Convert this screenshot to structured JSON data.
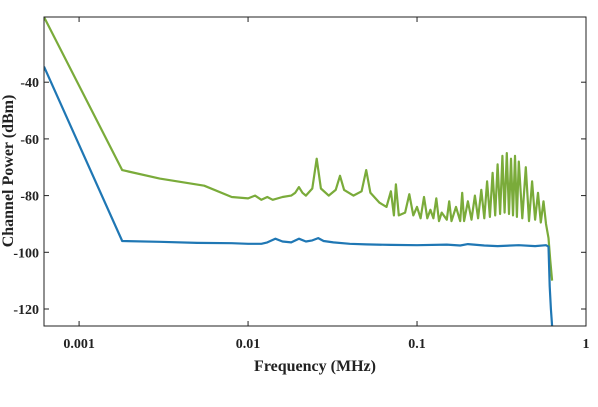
{
  "chart_data": {
    "type": "line",
    "xlabel": "Frequency (MHz)",
    "ylabel": "Channel Power (dBm)",
    "x_scale": "log",
    "xlim": [
      0.00062,
      1
    ],
    "ylim": [
      -126,
      -17
    ],
    "x_ticks": [
      {
        "value": 0.001,
        "label": "0.001"
      },
      {
        "value": 0.01,
        "label": "0.01"
      },
      {
        "value": 0.1,
        "label": "0.1"
      },
      {
        "value": 1,
        "label": "1"
      }
    ],
    "y_ticks": [
      {
        "value": -120,
        "label": "-120"
      },
      {
        "value": -100,
        "label": "-100"
      },
      {
        "value": -80,
        "label": "-80"
      },
      {
        "value": -60,
        "label": "-60"
      },
      {
        "value": -40,
        "label": "-40"
      }
    ],
    "grid": false,
    "series": [
      {
        "color": "#7aab3a",
        "points": [
          [
            0.00062,
            -17
          ],
          [
            0.0018,
            -71
          ],
          [
            0.003,
            -74
          ],
          [
            0.0055,
            -76.5
          ],
          [
            0.008,
            -80.5
          ],
          [
            0.01,
            -81
          ],
          [
            0.011,
            -80
          ],
          [
            0.012,
            -81.5
          ],
          [
            0.013,
            -80.5
          ],
          [
            0.014,
            -81.5
          ],
          [
            0.016,
            -80.5
          ],
          [
            0.018,
            -80
          ],
          [
            0.019,
            -79
          ],
          [
            0.02,
            -77
          ],
          [
            0.021,
            -79
          ],
          [
            0.022,
            -80
          ],
          [
            0.024,
            -77.5
          ],
          [
            0.0255,
            -67
          ],
          [
            0.027,
            -77.5
          ],
          [
            0.03,
            -80
          ],
          [
            0.033,
            -78
          ],
          [
            0.035,
            -73
          ],
          [
            0.037,
            -78
          ],
          [
            0.042,
            -80
          ],
          [
            0.047,
            -78.5
          ],
          [
            0.05,
            -71
          ],
          [
            0.053,
            -79
          ],
          [
            0.06,
            -82.5
          ],
          [
            0.066,
            -84
          ],
          [
            0.07,
            -78.5
          ],
          [
            0.073,
            -87
          ],
          [
            0.075,
            -76
          ],
          [
            0.078,
            -87
          ],
          [
            0.085,
            -86
          ],
          [
            0.09,
            -79.5
          ],
          [
            0.095,
            -87
          ],
          [
            0.1,
            -84
          ],
          [
            0.105,
            -88
          ],
          [
            0.11,
            -80.5
          ],
          [
            0.115,
            -88
          ],
          [
            0.12,
            -85
          ],
          [
            0.125,
            -88
          ],
          [
            0.13,
            -81
          ],
          [
            0.135,
            -89
          ],
          [
            0.14,
            -86
          ],
          [
            0.15,
            -88.5
          ],
          [
            0.155,
            -82
          ],
          [
            0.16,
            -89
          ],
          [
            0.17,
            -84
          ],
          [
            0.18,
            -89
          ],
          [
            0.185,
            -79
          ],
          [
            0.19,
            -89
          ],
          [
            0.2,
            -82
          ],
          [
            0.21,
            -88.5
          ],
          [
            0.22,
            -80
          ],
          [
            0.23,
            -88
          ],
          [
            0.24,
            -78
          ],
          [
            0.25,
            -88
          ],
          [
            0.26,
            -75
          ],
          [
            0.27,
            -87.5
          ],
          [
            0.28,
            -72
          ],
          [
            0.29,
            -87
          ],
          [
            0.3,
            -69
          ],
          [
            0.31,
            -86.5
          ],
          [
            0.32,
            -66
          ],
          [
            0.33,
            -86
          ],
          [
            0.34,
            -65
          ],
          [
            0.35,
            -86.5
          ],
          [
            0.36,
            -67
          ],
          [
            0.37,
            -87
          ],
          [
            0.38,
            -66
          ],
          [
            0.39,
            -87.5
          ],
          [
            0.4,
            -68
          ],
          [
            0.42,
            -88
          ],
          [
            0.44,
            -70
          ],
          [
            0.46,
            -89
          ],
          [
            0.48,
            -75
          ],
          [
            0.5,
            -88.5
          ],
          [
            0.52,
            -79
          ],
          [
            0.54,
            -89.5
          ],
          [
            0.56,
            -82
          ],
          [
            0.58,
            -90
          ],
          [
            0.6,
            -95
          ],
          [
            0.615,
            -103
          ],
          [
            0.63,
            -110
          ]
        ]
      },
      {
        "color": "#1f77b4",
        "points": [
          [
            0.00062,
            -34.5
          ],
          [
            0.0018,
            -96
          ],
          [
            0.003,
            -96.3
          ],
          [
            0.005,
            -96.7
          ],
          [
            0.008,
            -96.8
          ],
          [
            0.01,
            -97
          ],
          [
            0.012,
            -97
          ],
          [
            0.013,
            -96.5
          ],
          [
            0.0145,
            -95.2
          ],
          [
            0.016,
            -96.2
          ],
          [
            0.018,
            -96.5
          ],
          [
            0.02,
            -95.2
          ],
          [
            0.022,
            -96.2
          ],
          [
            0.024,
            -95.8
          ],
          [
            0.026,
            -95
          ],
          [
            0.028,
            -96
          ],
          [
            0.032,
            -96.5
          ],
          [
            0.04,
            -97
          ],
          [
            0.05,
            -97.2
          ],
          [
            0.07,
            -97.4
          ],
          [
            0.1,
            -97.5
          ],
          [
            0.15,
            -97.3
          ],
          [
            0.18,
            -97.6
          ],
          [
            0.2,
            -97.1
          ],
          [
            0.25,
            -97.6
          ],
          [
            0.3,
            -97.8
          ],
          [
            0.4,
            -97.5
          ],
          [
            0.5,
            -97.8
          ],
          [
            0.58,
            -97.5
          ],
          [
            0.6,
            -98
          ],
          [
            0.61,
            -112
          ],
          [
            0.62,
            -120
          ],
          [
            0.63,
            -126
          ]
        ]
      }
    ]
  }
}
